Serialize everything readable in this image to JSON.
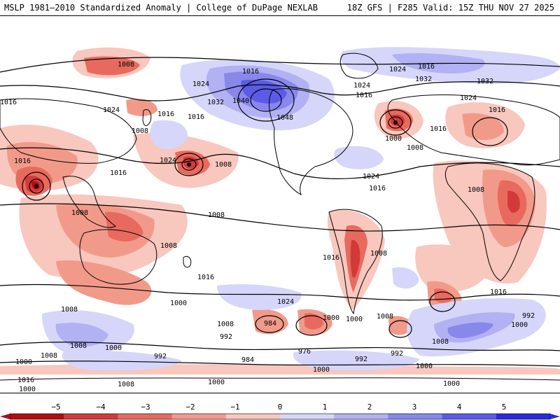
{
  "header": {
    "left": "MSLP 1981–2010 Standardized Anomaly | College of DuPage NEXLAB",
    "right": "18Z GFS | F285 Valid: 15Z THU NOV 27 2025"
  },
  "colors": {
    "neg5": "#b30d0d",
    "neg4": "#d23a3a",
    "neg3": "#e86a5e",
    "neg2": "#f29a8a",
    "neg1": "#f8c7bd",
    "zero": "#ffffff",
    "pos1": "#d6d6fb",
    "pos2": "#b1b1f3",
    "pos3": "#8787ec",
    "pos4": "#5b5be8",
    "pos5": "#2b2bd9",
    "land": "#000000"
  },
  "colorbar": {
    "ticks": [
      "−5",
      "−4",
      "−3",
      "−2",
      "−1",
      "0",
      "1",
      "2",
      "3",
      "4",
      "5"
    ]
  },
  "isobar_labels": [
    {
      "text": "1008"
    },
    {
      "text": "1016"
    },
    {
      "text": "1024"
    },
    {
      "text": "1024"
    },
    {
      "text": "1032"
    },
    {
      "text": "1040"
    },
    {
      "text": "1048"
    },
    {
      "text": "1016"
    },
    {
      "text": "1032"
    },
    {
      "text": "1032"
    },
    {
      "text": "1016"
    },
    {
      "text": "1024"
    },
    {
      "text": "1024"
    },
    {
      "text": "1016"
    },
    {
      "text": "1000"
    },
    {
      "text": "1008"
    },
    {
      "text": "1016"
    },
    {
      "text": "1024"
    },
    {
      "text": "1016"
    },
    {
      "text": "1024"
    },
    {
      "text": "1016"
    },
    {
      "text": "1008"
    },
    {
      "text": "1016"
    },
    {
      "text": "1016"
    },
    {
      "text": "1024"
    },
    {
      "text": "1016"
    },
    {
      "text": "1008"
    },
    {
      "text": "1008"
    },
    {
      "text": "1008"
    },
    {
      "text": "1016"
    },
    {
      "text": "1008"
    },
    {
      "text": "1008"
    },
    {
      "text": "1008"
    },
    {
      "text": "1000"
    },
    {
      "text": "1016"
    },
    {
      "text": "1024"
    },
    {
      "text": "1016"
    },
    {
      "text": "1008"
    },
    {
      "text": "1000"
    },
    {
      "text": "1000"
    },
    {
      "text": "1008"
    },
    {
      "text": "984"
    },
    {
      "text": "992"
    },
    {
      "text": "976"
    },
    {
      "text": "984"
    },
    {
      "text": "992"
    },
    {
      "text": "992"
    },
    {
      "text": "1008"
    },
    {
      "text": "1000"
    },
    {
      "text": "1008"
    },
    {
      "text": "1000"
    },
    {
      "text": "992"
    },
    {
      "text": "1000"
    },
    {
      "text": "1016"
    },
    {
      "text": "1008"
    },
    {
      "text": "992"
    },
    {
      "text": "1000"
    },
    {
      "text": "1000"
    },
    {
      "text": "1008"
    },
    {
      "text": "1000"
    },
    {
      "text": "1000"
    },
    {
      "text": "1008"
    },
    {
      "text": "1016"
    },
    {
      "text": "1000"
    }
  ]
}
